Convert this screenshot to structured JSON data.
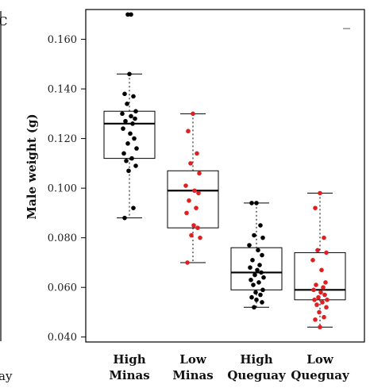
{
  "left_panel": {
    "corner_letter": "C",
    "bottom_fragment": "ay"
  },
  "chart_data": {
    "type": "box",
    "ylabel": "Male weight (g)",
    "ylim": [
      0.038,
      0.172
    ],
    "yticks": [
      "0.040",
      "0.060",
      "0.080",
      "0.100",
      "0.120",
      "0.140",
      "0.160"
    ],
    "categories": [
      {
        "lines": [
          "High",
          "Minas"
        ],
        "color": "#000000"
      },
      {
        "lines": [
          "Low",
          "Minas"
        ],
        "color": "#e02020"
      },
      {
        "lines": [
          "High",
          "Queguay"
        ],
        "color": "#000000"
      },
      {
        "lines": [
          "Low",
          "Queguay"
        ],
        "color": "#e02020"
      }
    ],
    "boxes": [
      {
        "whisker_low": 0.088,
        "q1": 0.112,
        "median": 0.126,
        "q3": 0.131,
        "whisker_high": 0.146,
        "outliers": [
          0.17,
          0.17
        ]
      },
      {
        "whisker_low": 0.07,
        "q1": 0.084,
        "median": 0.099,
        "q3": 0.107,
        "whisker_high": 0.13,
        "outliers": []
      },
      {
        "whisker_low": 0.052,
        "q1": 0.059,
        "median": 0.066,
        "q3": 0.076,
        "whisker_high": 0.094,
        "outliers": []
      },
      {
        "whisker_low": 0.044,
        "q1": 0.055,
        "median": 0.059,
        "q3": 0.074,
        "whisker_high": 0.098,
        "outliers": []
      }
    ],
    "points": [
      [
        0.146,
        0.138,
        0.137,
        0.134,
        0.131,
        0.13,
        0.129,
        0.128,
        0.127,
        0.126,
        0.124,
        0.122,
        0.12,
        0.118,
        0.116,
        0.114,
        0.112,
        0.111,
        0.109,
        0.107,
        0.092,
        0.088
      ],
      [
        0.13,
        0.123,
        0.114,
        0.11,
        0.106,
        0.101,
        0.099,
        0.098,
        0.095,
        0.092,
        0.09,
        0.085,
        0.084,
        0.081,
        0.08,
        0.07
      ],
      [
        0.094,
        0.094,
        0.085,
        0.081,
        0.08,
        0.077,
        0.075,
        0.073,
        0.071,
        0.069,
        0.068,
        0.067,
        0.066,
        0.065,
        0.064,
        0.063,
        0.062,
        0.061,
        0.059,
        0.058,
        0.057,
        0.056,
        0.055,
        0.054,
        0.052
      ],
      [
        0.098,
        0.092,
        0.08,
        0.075,
        0.074,
        0.071,
        0.067,
        0.062,
        0.061,
        0.06,
        0.059,
        0.058,
        0.057,
        0.056,
        0.055,
        0.055,
        0.054,
        0.053,
        0.052,
        0.05,
        0.048,
        0.047,
        0.044
      ]
    ]
  }
}
